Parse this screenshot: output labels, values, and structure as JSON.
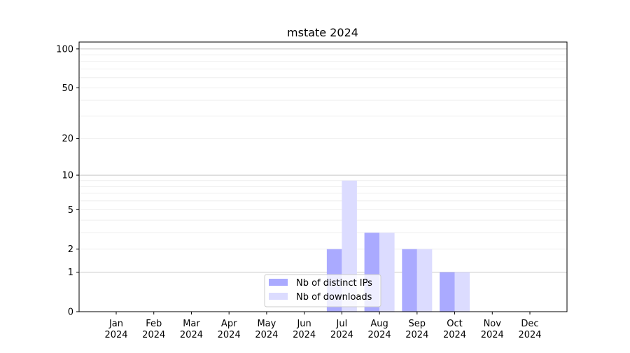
{
  "chart_data": {
    "type": "bar",
    "title": "mstate 2024",
    "xlabel": "",
    "ylabel": "",
    "y_scale": "symlog (log10(1+y))",
    "ylim": [
      0,
      113
    ],
    "y_ticks": [
      0,
      1,
      2,
      5,
      10,
      20,
      50,
      100
    ],
    "y_tick_labels": [
      "0",
      "1",
      "2",
      "5",
      "10",
      "20",
      "50",
      "100"
    ],
    "grid": "horizontal major and minor",
    "categories": [
      "Jan\n2024",
      "Feb\n2024",
      "Mar\n2024",
      "Apr\n2024",
      "May\n2024",
      "Jun\n2024",
      "Jul\n2024",
      "Aug\n2024",
      "Sep\n2024",
      "Oct\n2024",
      "Nov\n2024",
      "Dec\n2024"
    ],
    "series": [
      {
        "name": "Nb of distinct IPs",
        "color": "#aaaaff",
        "values": [
          0,
          0,
          0,
          0,
          0,
          0,
          2,
          3,
          2,
          1,
          0,
          0
        ]
      },
      {
        "name": "Nb of downloads",
        "color": "#dcdcff",
        "values": [
          0,
          0,
          0,
          0,
          0,
          0,
          9,
          3,
          2,
          1,
          0,
          0
        ]
      }
    ],
    "legend_position": "lower-center"
  }
}
